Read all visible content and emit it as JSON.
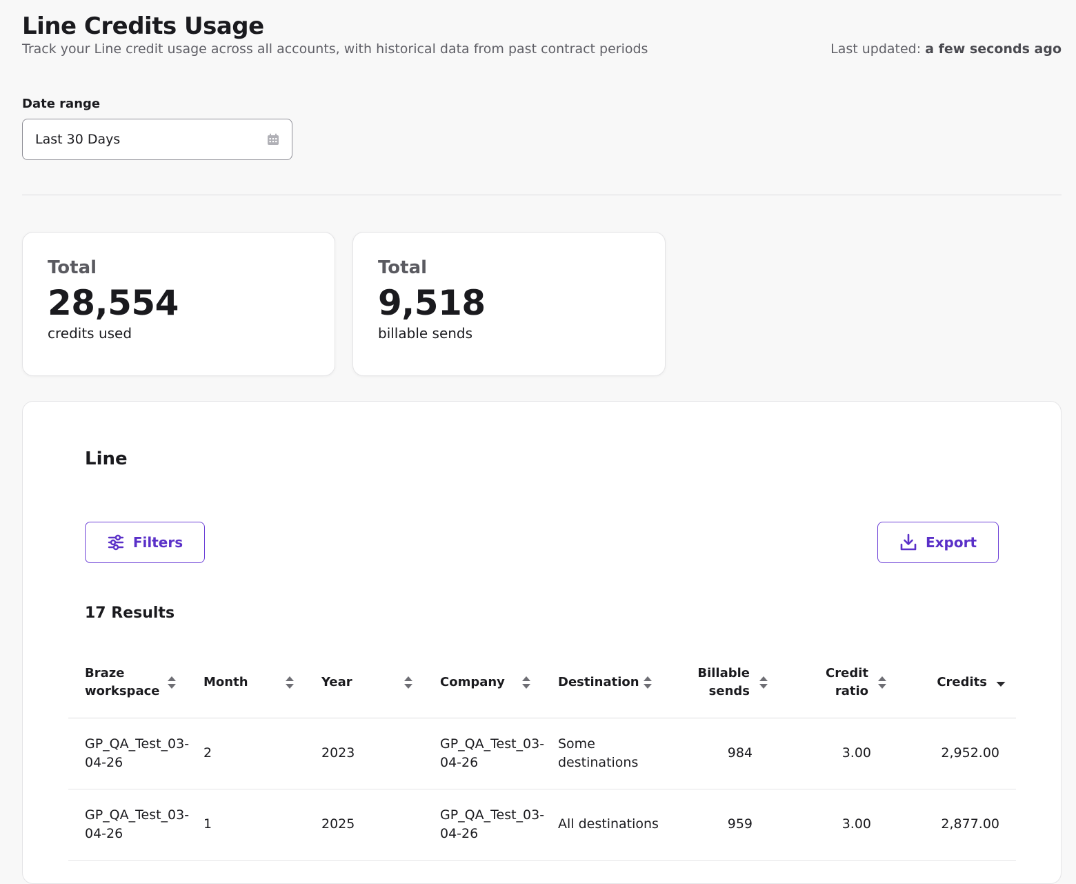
{
  "header": {
    "title": "Line Credits Usage",
    "subtitle": "Track your Line credit usage across all accounts, with historical data from past contract periods",
    "last_updated_label": "Last updated:",
    "last_updated_value": "a few seconds ago"
  },
  "date_range": {
    "label": "Date range",
    "value": "Last 30 Days",
    "icon": "calendar-icon"
  },
  "stats": [
    {
      "label": "Total",
      "value": "28,554",
      "unit": "credits used"
    },
    {
      "label": "Total",
      "value": "9,518",
      "unit": "billable sends"
    }
  ],
  "panel": {
    "title": "Line",
    "filters_label": "Filters",
    "export_label": "Export",
    "results": "17 Results"
  },
  "table": {
    "columns": [
      {
        "label": "Braze workspace",
        "sort": "both"
      },
      {
        "label": "Month",
        "sort": "both"
      },
      {
        "label": "Year",
        "sort": "both"
      },
      {
        "label": "Company",
        "sort": "both"
      },
      {
        "label": "Destination",
        "sort": "both"
      },
      {
        "label": "Billable sends",
        "sort": "both"
      },
      {
        "label": "Credit ratio",
        "sort": "both"
      },
      {
        "label": "Credits",
        "sort": "desc"
      }
    ],
    "rows": [
      [
        "GP_QA_Test_03-04-26",
        "2",
        "2023",
        "GP_QA_Test_03-04-26",
        "Some destinations",
        "984",
        "3.00",
        "2,952.00"
      ],
      [
        "GP_QA_Test_03-04-26",
        "1",
        "2025",
        "GP_QA_Test_03-04-26",
        "All destinations",
        "959",
        "3.00",
        "2,877.00"
      ]
    ]
  },
  "colors": {
    "accent": "#5a30c8",
    "background": "#f8f8f8"
  }
}
